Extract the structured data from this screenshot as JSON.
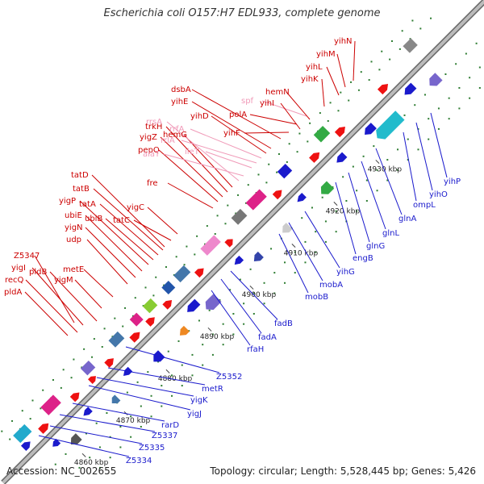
{
  "title": "Escherichia coli O157:H7 EDL933, complete genome",
  "footer": {
    "accession": "Accession: NC_002655",
    "summary": "Topology: circular; Length: 5,528,445 bp; Genes: 5,426"
  },
  "colors": {
    "backbone": "#999999",
    "forward_label": "#cc0000",
    "reverse_label": "#1a1acc",
    "rna_label": "#f09ab8",
    "forward_cds": "#ee1111",
    "reverse_cds": "#1111dd",
    "tick": "#228822"
  },
  "ruler": {
    "units": "kbp",
    "ticks": [
      {
        "label": "4860 kbp"
      },
      {
        "label": "4870 kbp"
      },
      {
        "label": "4880 kbp"
      },
      {
        "label": "4890 kbp"
      },
      {
        "label": "4900 kbp"
      },
      {
        "label": "4910 kbp"
      },
      {
        "label": "4920 kbp"
      },
      {
        "label": "4930 kbp"
      }
    ]
  },
  "forward_genes": [
    {
      "label": "pldA",
      "type": "cds"
    },
    {
      "label": "recQ",
      "type": "cds"
    },
    {
      "label": "yigI",
      "type": "cds"
    },
    {
      "label": "Z5347",
      "type": "cds"
    },
    {
      "label": "pldB",
      "type": "cds"
    },
    {
      "label": "yigM",
      "type": "cds"
    },
    {
      "label": "metE",
      "type": "cds"
    },
    {
      "label": "udp",
      "type": "cds"
    },
    {
      "label": "yigN",
      "type": "cds"
    },
    {
      "label": "ubiE",
      "type": "cds"
    },
    {
      "label": "yigP",
      "type": "cds"
    },
    {
      "label": "ubiB",
      "type": "cds"
    },
    {
      "label": "tatA",
      "type": "cds"
    },
    {
      "label": "tatB",
      "type": "cds"
    },
    {
      "label": "tatD",
      "type": "cds"
    },
    {
      "label": "tatC",
      "type": "cds"
    },
    {
      "label": "yigC",
      "type": "cds"
    },
    {
      "label": "fre",
      "type": "cds"
    },
    {
      "label": "pepQ",
      "type": "cds"
    },
    {
      "label": "yigZ",
      "type": "cds"
    },
    {
      "label": "trkH",
      "type": "cds"
    },
    {
      "label": "hemG",
      "type": "cds"
    },
    {
      "label": "rrsA",
      "type": "rna"
    },
    {
      "label": "alaT",
      "type": "rna"
    },
    {
      "label": "ileT",
      "type": "rna"
    },
    {
      "label": "rrlA",
      "type": "rna"
    },
    {
      "label": "rrfA",
      "type": "rna"
    },
    {
      "label": "yihD",
      "type": "cds"
    },
    {
      "label": "yihE",
      "type": "cds"
    },
    {
      "label": "dsbA",
      "type": "cds"
    },
    {
      "label": "yihF",
      "type": "cds"
    },
    {
      "label": "polA",
      "type": "cds"
    },
    {
      "label": "spf",
      "type": "rna"
    },
    {
      "label": "yihI",
      "type": "cds"
    },
    {
      "label": "hemN",
      "type": "cds"
    },
    {
      "label": "yihK",
      "type": "cds"
    },
    {
      "label": "yihL",
      "type": "cds"
    },
    {
      "label": "yihM",
      "type": "cds"
    },
    {
      "label": "yihN",
      "type": "cds"
    }
  ],
  "reverse_genes": [
    {
      "label": "Z5334"
    },
    {
      "label": "Z5335"
    },
    {
      "label": "Z5337"
    },
    {
      "label": "rarD"
    },
    {
      "label": "yigJ"
    },
    {
      "label": "yigK"
    },
    {
      "label": "metR"
    },
    {
      "label": "Z5352"
    },
    {
      "label": "rfaH"
    },
    {
      "label": "fadA"
    },
    {
      "label": "fadB"
    },
    {
      "label": "mobB"
    },
    {
      "label": "mobA"
    },
    {
      "label": "yihG"
    },
    {
      "label": "engB"
    },
    {
      "label": "glnG"
    },
    {
      "label": "glnL"
    },
    {
      "label": "glnA"
    },
    {
      "label": "ompL"
    },
    {
      "label": "yihO"
    },
    {
      "label": "yihP"
    }
  ]
}
